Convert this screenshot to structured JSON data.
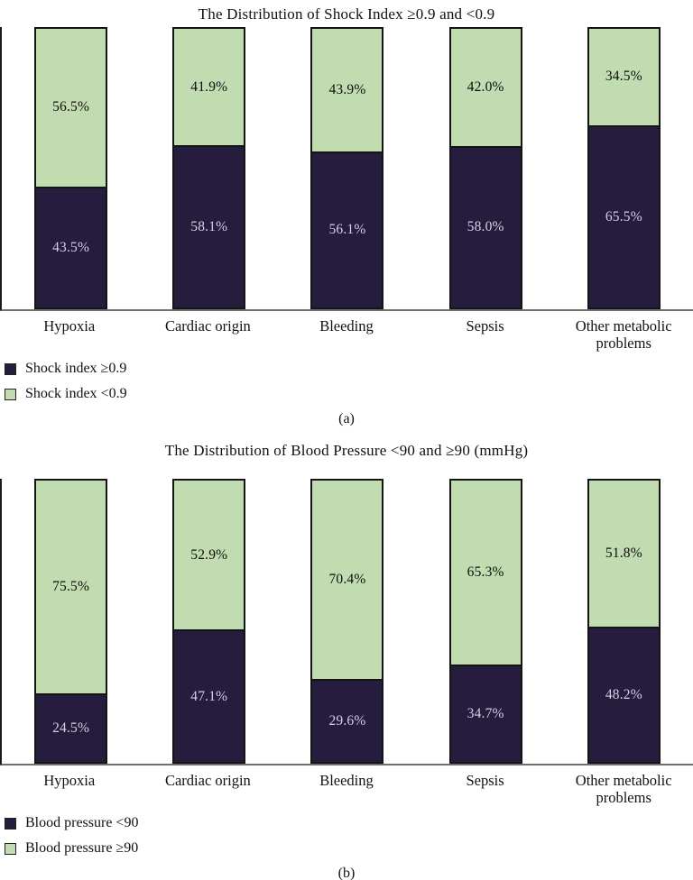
{
  "chart_data": [
    {
      "type": "bar",
      "stacked": true,
      "panel_label": "(a)",
      "title": "The Distribution of Shock Index ≥0.9 and <0.9",
      "categories": [
        "Hypoxia",
        "Cardiac origin",
        "Bleeding",
        "Sepsis",
        "Other metabolic problems"
      ],
      "series": [
        {
          "name": "Shock index ≥0.9",
          "color": "#251c3e",
          "label_color": "#d6d0e2",
          "values": [
            43.5,
            58.1,
            56.1,
            58.0,
            65.5
          ]
        },
        {
          "name": "Shock index <0.9",
          "color": "#c2dcb1",
          "label_color": "#0d0d0d",
          "values": [
            56.5,
            41.9,
            43.9,
            42.0,
            34.5
          ]
        }
      ],
      "value_suffix": "%",
      "ylim": [
        0,
        100
      ],
      "grid": false,
      "legend_position": "bottom-left"
    },
    {
      "type": "bar",
      "stacked": true,
      "panel_label": "(b)",
      "title": "The Distribution of Blood Pressure <90 and ≥90 (mmHg)",
      "categories": [
        "Hypoxia",
        "Cardiac origin",
        "Bleeding",
        "Sepsis",
        "Other metabolic problems"
      ],
      "series": [
        {
          "name": "Blood pressure <90",
          "color": "#251c3e",
          "label_color": "#d6d0e2",
          "values": [
            24.5,
            47.1,
            29.6,
            34.7,
            48.2
          ]
        },
        {
          "name": "Blood pressure ≥90",
          "color": "#c2dcb1",
          "label_color": "#0d0d0d",
          "values": [
            75.5,
            52.9,
            70.4,
            65.3,
            51.8
          ]
        }
      ],
      "value_suffix": "%",
      "ylim": [
        0,
        100
      ],
      "grid": false,
      "legend_position": "bottom-left"
    }
  ]
}
